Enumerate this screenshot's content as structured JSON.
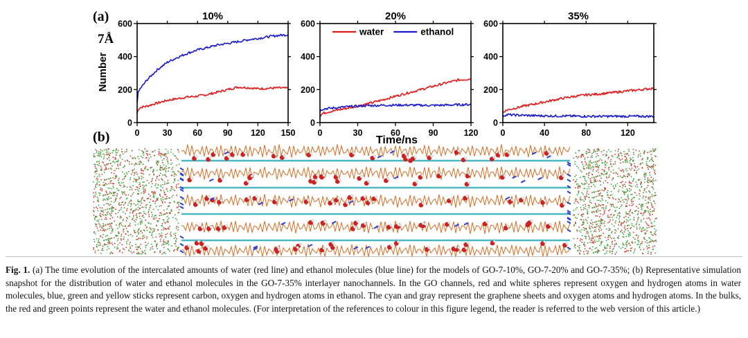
{
  "figure": {
    "panel_a_label": "(a)",
    "panel_b_label": "(b)",
    "side_label": "7Å",
    "ylabel": "Number",
    "xlabel": "Time/ns"
  },
  "chart_data": [
    {
      "type": "line",
      "title": "10%",
      "xlim": [
        0,
        150
      ],
      "ylim": [
        0,
        600
      ],
      "xticks": [
        0,
        30,
        60,
        90,
        120,
        150
      ],
      "yticks": [
        0,
        200,
        400,
        600
      ],
      "series": [
        {
          "color": "#e31a1c",
          "x": [
            0,
            1,
            3,
            5,
            10,
            15,
            20,
            30,
            40,
            50,
            60,
            70,
            80,
            90,
            100,
            110,
            120,
            130,
            140,
            150
          ],
          "y": [
            55,
            80,
            90,
            95,
            100,
            110,
            118,
            135,
            145,
            155,
            160,
            170,
            185,
            200,
            215,
            212,
            205,
            208,
            210,
            208
          ]
        },
        {
          "color": "#1a1acc",
          "x": [
            0,
            1,
            3,
            5,
            10,
            15,
            20,
            30,
            40,
            50,
            60,
            70,
            80,
            90,
            100,
            110,
            120,
            130,
            140,
            150
          ],
          "y": [
            120,
            180,
            205,
            220,
            260,
            290,
            320,
            365,
            395,
            420,
            440,
            455,
            470,
            480,
            490,
            502,
            510,
            520,
            528,
            532
          ]
        }
      ]
    },
    {
      "type": "line",
      "title": "20%",
      "xlim": [
        0,
        120
      ],
      "ylim": [
        0,
        600
      ],
      "xticks": [
        0,
        30,
        60,
        90,
        120
      ],
      "yticks": [
        0,
        200,
        400,
        600
      ],
      "legend": [
        {
          "name": "water",
          "color": "#e31a1c"
        },
        {
          "name": "ethanol",
          "color": "#1a1acc"
        }
      ],
      "series": [
        {
          "name": "water",
          "color": "#e31a1c",
          "x": [
            0,
            2,
            5,
            10,
            20,
            30,
            40,
            50,
            60,
            70,
            80,
            90,
            100,
            110,
            120
          ],
          "y": [
            40,
            55,
            62,
            70,
            85,
            100,
            118,
            138,
            160,
            180,
            200,
            220,
            240,
            258,
            265
          ]
        },
        {
          "name": "ethanol",
          "color": "#1a1acc",
          "x": [
            0,
            2,
            5,
            10,
            20,
            30,
            40,
            50,
            60,
            70,
            80,
            90,
            100,
            110,
            120
          ],
          "y": [
            70,
            82,
            85,
            88,
            95,
            100,
            103,
            105,
            106,
            106,
            105,
            104,
            106,
            108,
            110
          ]
        }
      ]
    },
    {
      "type": "line",
      "title": "35%",
      "xlim": [
        0,
        145
      ],
      "ylim": [
        0,
        600
      ],
      "xticks": [
        0,
        40,
        80,
        120
      ],
      "yticks": [
        0,
        200,
        400,
        600
      ],
      "series": [
        {
          "color": "#e31a1c",
          "x": [
            0,
            2,
            5,
            10,
            20,
            30,
            40,
            50,
            60,
            70,
            80,
            90,
            100,
            110,
            120,
            130,
            140,
            145
          ],
          "y": [
            62,
            70,
            78,
            85,
            100,
            112,
            125,
            138,
            150,
            160,
            168,
            172,
            178,
            185,
            192,
            198,
            205,
            210
          ]
        },
        {
          "color": "#1a1acc",
          "x": [
            0,
            2,
            5,
            10,
            20,
            30,
            40,
            50,
            60,
            70,
            80,
            90,
            100,
            110,
            120,
            130,
            140,
            145
          ],
          "y": [
            40,
            45,
            48,
            46,
            44,
            42,
            41,
            40,
            40,
            39,
            38,
            38,
            38,
            38,
            38,
            38,
            38,
            38
          ]
        }
      ]
    }
  ],
  "snapshot": {
    "bulk_colors": [
      "#d9352b",
      "#3aa63a"
    ],
    "sheet_color": "#49b8c4",
    "stick_color": "#d2691e",
    "water_oxygen_color": "#cc2222",
    "hydrogen_color": "#eeeeee",
    "ethanol_color": "#2b3fd0"
  },
  "caption": {
    "label": "Fig. 1.",
    "text": " (a) The time evolution of the intercalated amounts of water (red line) and ethanol molecules (blue line) for the models of GO-7-10%, GO-7-20% and GO-7-35%; (b) Representative simulation snapshot for the distribution of water and ethanol molecules in the GO-7-35% interlayer nanochannels. In the GO channels, red and white spheres represent oxygen and hydrogen atoms in water molecules, blue, green and yellow sticks represent carbon, oxygen and hydrogen atoms in ethanol. The cyan and gray represent the graphene sheets and oxygen atoms and hydrogen atoms. In the bulks, the red and green points represent the water and ethanol molecules. (For interpretation of the references to colour in this figure legend, the reader is referred to the web version of this article.)"
  }
}
